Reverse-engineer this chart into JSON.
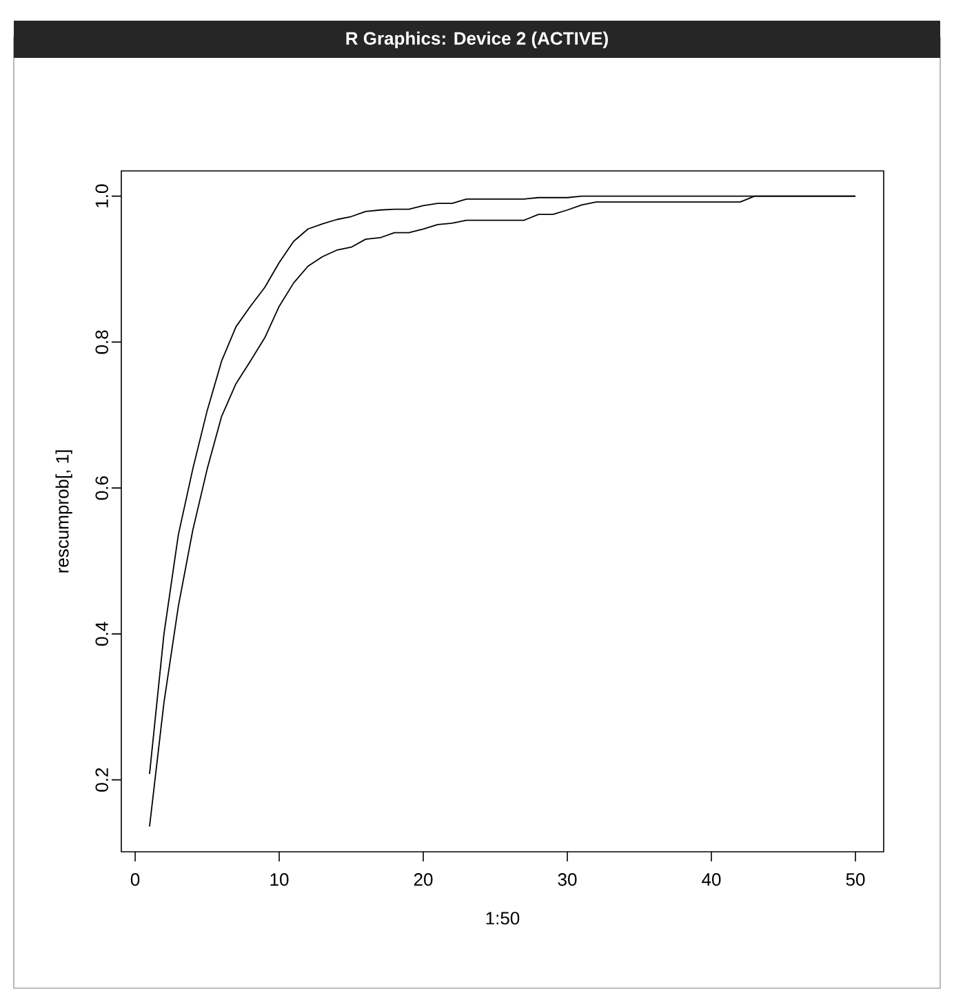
{
  "chart_data": {
    "type": "line",
    "xlabel": "1:50",
    "ylabel": "rescumprob[, 1]",
    "annotations": [
      "R Graphics: Device 2 (ACTIVE)"
    ],
    "xlim": [
      -0.96,
      51.96
    ],
    "ylim": [
      0.1014,
      1.0346
    ],
    "xticks": [
      0,
      10,
      20,
      30,
      40,
      50
    ],
    "yticks": [
      0.2,
      0.4,
      0.6,
      0.8,
      {
        "value": 1.0,
        "label": "1.0"
      }
    ],
    "grid": false,
    "marker": "none",
    "line_style": "solid",
    "x": [
      1,
      2,
      3,
      4,
      5,
      6,
      7,
      8,
      9,
      10,
      11,
      12,
      13,
      14,
      15,
      16,
      17,
      18,
      19,
      20,
      21,
      22,
      23,
      24,
      25,
      26,
      27,
      28,
      29,
      30,
      31,
      32,
      33,
      34,
      35,
      36,
      37,
      38,
      39,
      40,
      41,
      42,
      43,
      44,
      45,
      46,
      47,
      48,
      49,
      50
    ],
    "series": [
      {
        "color": "#000000",
        "values": [
          0.208,
          0.4,
          0.536,
          0.626,
          0.706,
          0.774,
          0.821,
          0.849,
          0.875,
          0.909,
          0.938,
          0.955,
          0.962,
          0.968,
          0.972,
          0.979,
          0.981,
          0.982,
          0.982,
          0.987,
          0.99,
          0.99,
          0.996,
          0.996,
          0.996,
          0.996,
          0.996,
          0.998,
          0.998,
          0.998,
          1.0,
          1.0,
          1.0,
          1.0,
          1.0,
          1.0,
          1.0,
          1.0,
          1.0,
          1.0,
          1.0,
          1.0,
          1.0,
          1.0,
          1.0,
          1.0,
          1.0,
          1.0,
          1.0,
          1.0
        ]
      },
      {
        "color": "#000000",
        "values": [
          0.136,
          0.306,
          0.438,
          0.542,
          0.626,
          0.698,
          0.743,
          0.774,
          0.806,
          0.849,
          0.881,
          0.904,
          0.917,
          0.926,
          0.93,
          0.941,
          0.943,
          0.95,
          0.95,
          0.955,
          0.961,
          0.963,
          0.967,
          0.967,
          0.967,
          0.967,
          0.967,
          0.975,
          0.975,
          0.981,
          0.988,
          0.992,
          0.992,
          0.992,
          0.992,
          0.992,
          0.992,
          0.992,
          0.992,
          0.992,
          0.992,
          0.992,
          1.0,
          1.0,
          1.0,
          1.0,
          1.0,
          1.0,
          1.0,
          1.0
        ]
      }
    ]
  }
}
